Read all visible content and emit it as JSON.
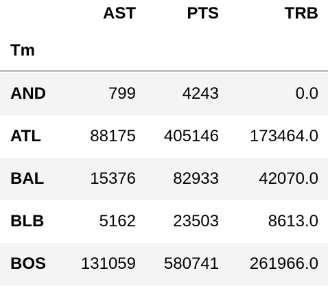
{
  "table": {
    "columns": [
      "AST",
      "PTS",
      "TRB"
    ],
    "index_name": "Tm",
    "rows": [
      {
        "tm": "AND",
        "ast": "799",
        "pts": "4243",
        "trb": "0.0"
      },
      {
        "tm": "ATL",
        "ast": "88175",
        "pts": "405146",
        "trb": "173464.0"
      },
      {
        "tm": "BAL",
        "ast": "15376",
        "pts": "82933",
        "trb": "42070.0"
      },
      {
        "tm": "BLB",
        "ast": "5162",
        "pts": "23503",
        "trb": "8613.0"
      },
      {
        "tm": "BOS",
        "ast": "131059",
        "pts": "580741",
        "trb": "261966.0"
      }
    ]
  }
}
